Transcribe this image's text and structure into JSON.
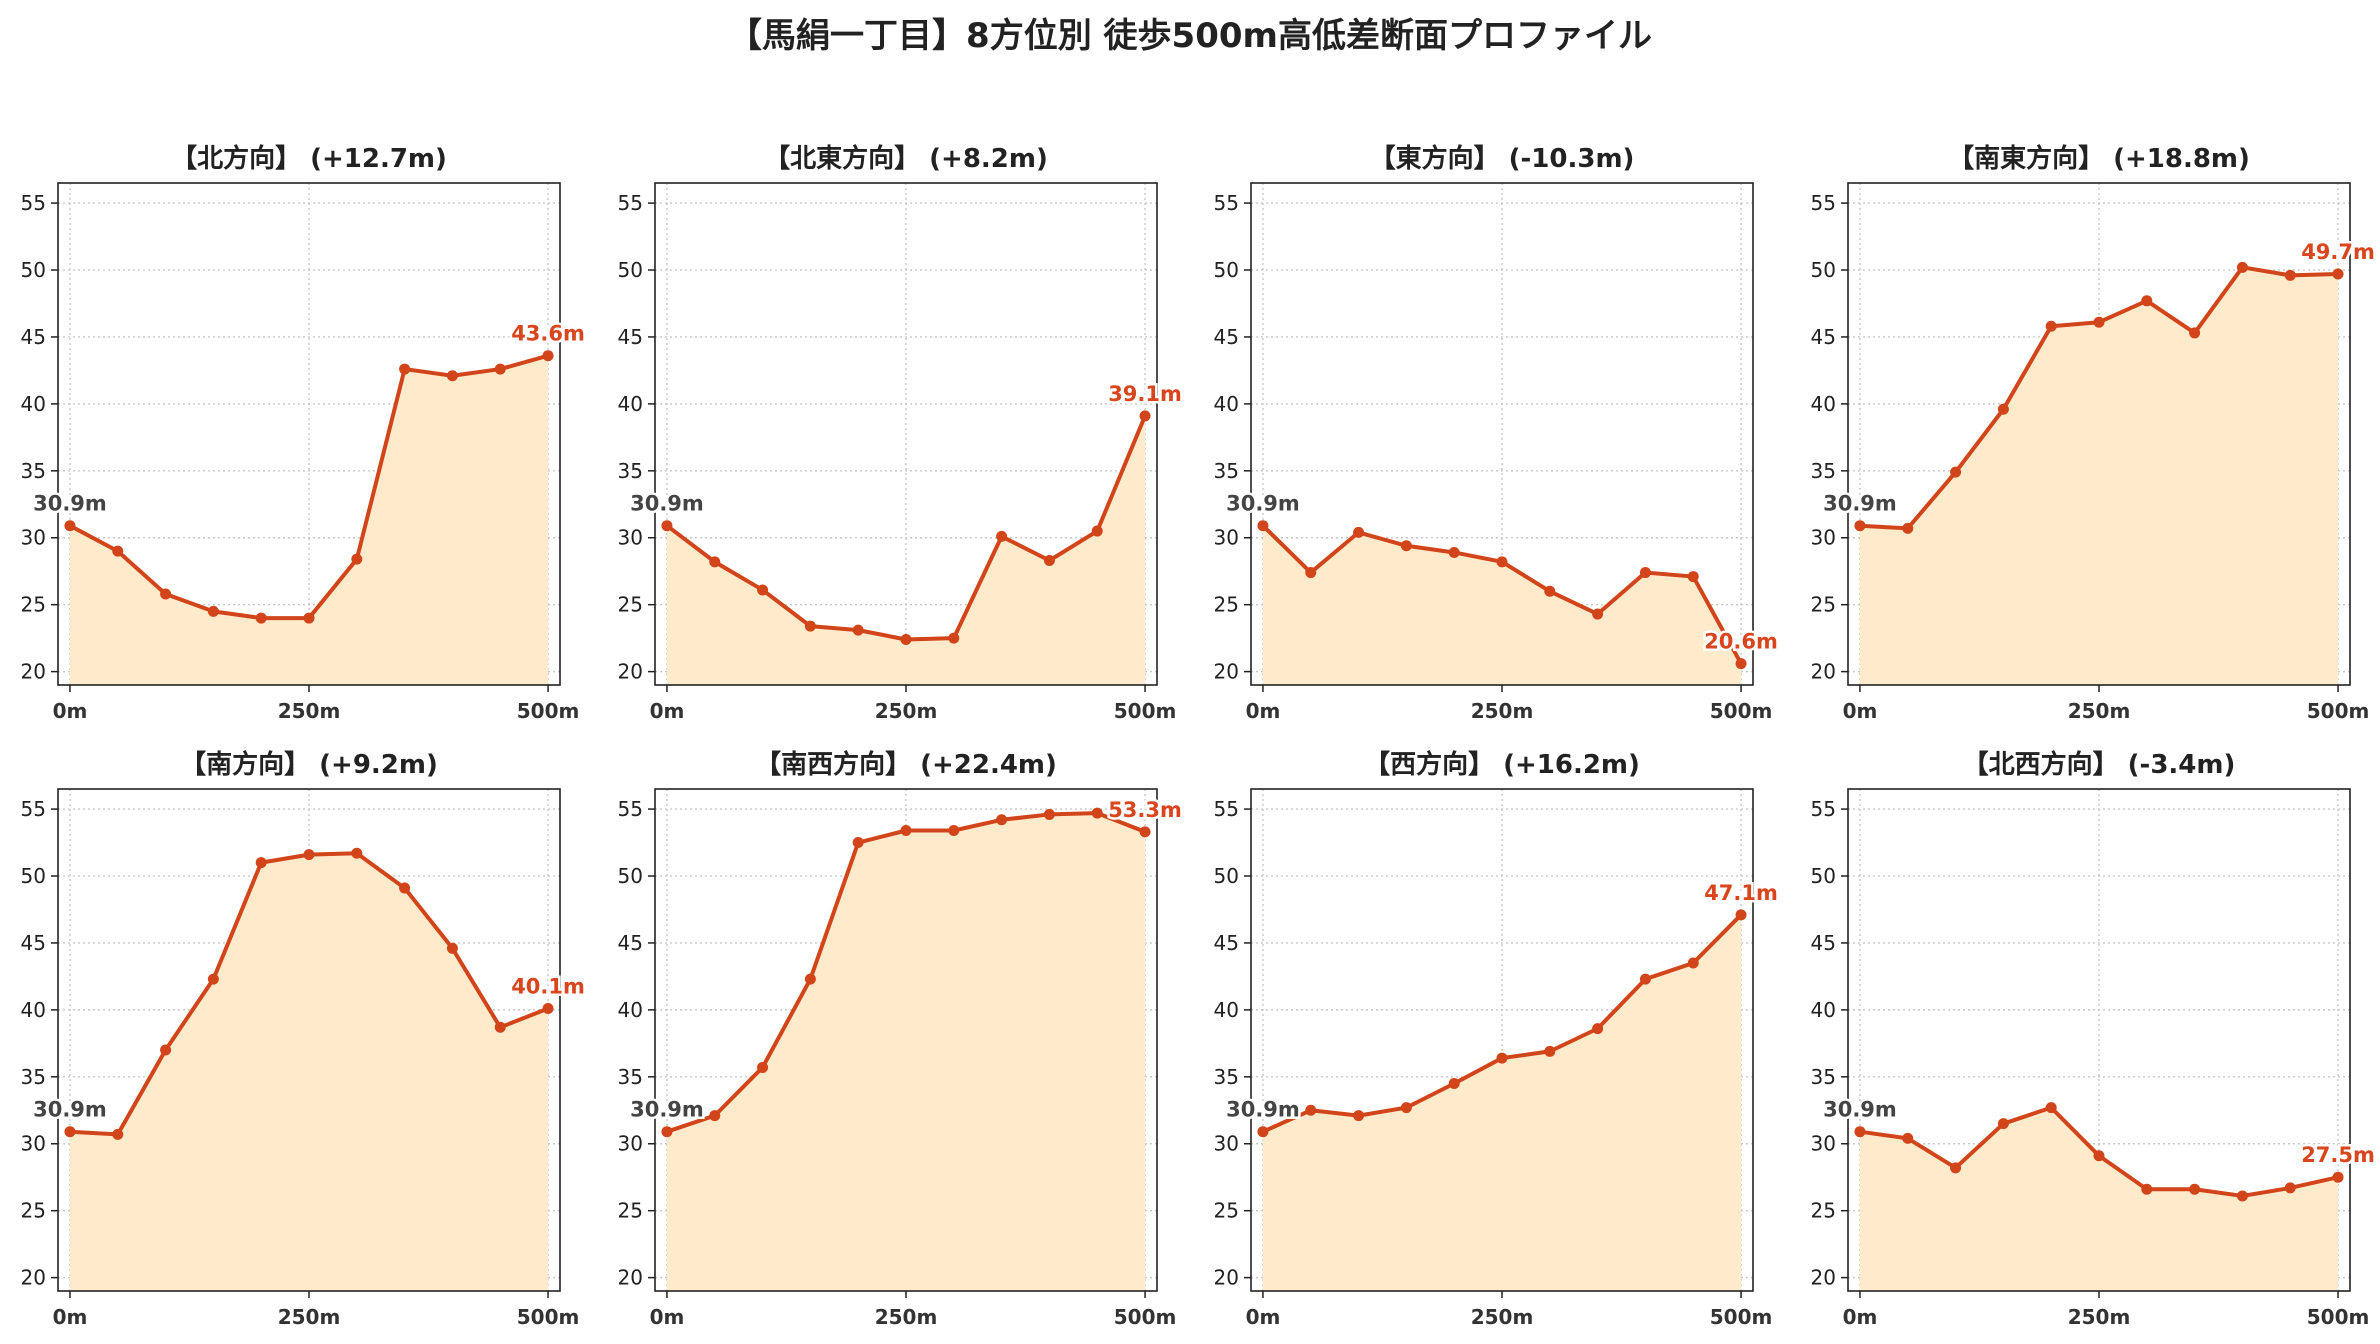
{
  "title": "【馬絹一丁目】8方位別 徒歩500m高低差断面プロファイル",
  "colors": {
    "line": "#d24419",
    "fill": "#ffebcc",
    "end_label": "#d9451c",
    "start_label": "#444444",
    "grid": "#c8c8c8"
  },
  "chart_data": [
    {
      "type": "area",
      "title": "【北方向】 (+12.7m)",
      "x": [
        0,
        50,
        100,
        150,
        200,
        250,
        300,
        350,
        400,
        450,
        500
      ],
      "y": [
        30.9,
        29.0,
        25.8,
        24.5,
        24.0,
        24.0,
        28.4,
        42.6,
        42.1,
        42.6,
        43.6
      ],
      "start_label": "30.9m",
      "end_label": "43.6m",
      "xlim": [
        0,
        500
      ],
      "ylim": [
        19,
        56.5
      ],
      "yticks": [
        20,
        25,
        30,
        35,
        40,
        45,
        50,
        55
      ],
      "xticks": [
        0,
        250,
        500
      ],
      "xtick_labels": [
        "0m",
        "250m",
        "500m"
      ],
      "grid": true
    },
    {
      "type": "area",
      "title": "【北東方向】 (+8.2m)",
      "x": [
        0,
        50,
        100,
        150,
        200,
        250,
        300,
        350,
        400,
        450,
        500
      ],
      "y": [
        30.9,
        28.2,
        26.1,
        23.4,
        23.1,
        22.4,
        22.5,
        30.1,
        28.3,
        30.5,
        39.1
      ],
      "start_label": "30.9m",
      "end_label": "39.1m",
      "xlim": [
        0,
        500
      ],
      "ylim": [
        19,
        56.5
      ],
      "yticks": [
        20,
        25,
        30,
        35,
        40,
        45,
        50,
        55
      ],
      "xticks": [
        0,
        250,
        500
      ],
      "xtick_labels": [
        "0m",
        "250m",
        "500m"
      ],
      "grid": true
    },
    {
      "type": "area",
      "title": "【東方向】 (-10.3m)",
      "x": [
        0,
        50,
        100,
        150,
        200,
        250,
        300,
        350,
        400,
        450,
        500
      ],
      "y": [
        30.9,
        27.4,
        30.4,
        29.4,
        28.9,
        28.2,
        26.0,
        24.3,
        27.4,
        27.1,
        20.6
      ],
      "start_label": "30.9m",
      "end_label": "20.6m",
      "xlim": [
        0,
        500
      ],
      "ylim": [
        19,
        56.5
      ],
      "yticks": [
        20,
        25,
        30,
        35,
        40,
        45,
        50,
        55
      ],
      "xticks": [
        0,
        250,
        500
      ],
      "xtick_labels": [
        "0m",
        "250m",
        "500m"
      ],
      "grid": true
    },
    {
      "type": "area",
      "title": "【南東方向】 (+18.8m)",
      "x": [
        0,
        50,
        100,
        150,
        200,
        250,
        300,
        350,
        400,
        450,
        500
      ],
      "y": [
        30.9,
        30.7,
        34.9,
        39.6,
        45.8,
        46.1,
        47.7,
        45.3,
        50.2,
        49.6,
        49.7
      ],
      "start_label": "30.9m",
      "end_label": "49.7m",
      "xlim": [
        0,
        500
      ],
      "ylim": [
        19,
        56.5
      ],
      "yticks": [
        20,
        25,
        30,
        35,
        40,
        45,
        50,
        55
      ],
      "xticks": [
        0,
        250,
        500
      ],
      "xtick_labels": [
        "0m",
        "250m",
        "500m"
      ],
      "grid": true
    },
    {
      "type": "area",
      "title": "【南方向】 (+9.2m)",
      "x": [
        0,
        50,
        100,
        150,
        200,
        250,
        300,
        350,
        400,
        450,
        500
      ],
      "y": [
        30.9,
        30.7,
        37.0,
        42.3,
        51.0,
        51.6,
        51.7,
        49.1,
        44.6,
        38.7,
        40.1
      ],
      "start_label": "30.9m",
      "end_label": "40.1m",
      "xlim": [
        0,
        500
      ],
      "ylim": [
        19,
        56.5
      ],
      "yticks": [
        20,
        25,
        30,
        35,
        40,
        45,
        50,
        55
      ],
      "xticks": [
        0,
        250,
        500
      ],
      "xtick_labels": [
        "0m",
        "250m",
        "500m"
      ],
      "grid": true
    },
    {
      "type": "area",
      "title": "【南西方向】 (+22.4m)",
      "x": [
        0,
        50,
        100,
        150,
        200,
        250,
        300,
        350,
        400,
        450,
        500
      ],
      "y": [
        30.9,
        32.1,
        35.7,
        42.3,
        52.5,
        53.4,
        53.4,
        54.2,
        54.6,
        54.7,
        53.3
      ],
      "start_label": "30.9m",
      "end_label": "53.3m",
      "xlim": [
        0,
        500
      ],
      "ylim": [
        19,
        56.5
      ],
      "yticks": [
        20,
        25,
        30,
        35,
        40,
        45,
        50,
        55
      ],
      "xticks": [
        0,
        250,
        500
      ],
      "xtick_labels": [
        "0m",
        "250m",
        "500m"
      ],
      "grid": true
    },
    {
      "type": "area",
      "title": "【西方向】 (+16.2m)",
      "x": [
        0,
        50,
        100,
        150,
        200,
        250,
        300,
        350,
        400,
        450,
        500
      ],
      "y": [
        30.9,
        32.5,
        32.1,
        32.7,
        34.5,
        36.4,
        36.9,
        38.6,
        42.3,
        43.5,
        47.1
      ],
      "start_label": "30.9m",
      "end_label": "47.1m",
      "xlim": [
        0,
        500
      ],
      "ylim": [
        19,
        56.5
      ],
      "yticks": [
        20,
        25,
        30,
        35,
        40,
        45,
        50,
        55
      ],
      "xticks": [
        0,
        250,
        500
      ],
      "xtick_labels": [
        "0m",
        "250m",
        "500m"
      ],
      "grid": true
    },
    {
      "type": "area",
      "title": "【北西方向】 (-3.4m)",
      "x": [
        0,
        50,
        100,
        150,
        200,
        250,
        300,
        350,
        400,
        450,
        500
      ],
      "y": [
        30.9,
        30.4,
        28.2,
        31.5,
        32.7,
        29.1,
        26.6,
        26.6,
        26.1,
        26.7,
        27.5
      ],
      "start_label": "30.9m",
      "end_label": "27.5m",
      "xlim": [
        0,
        500
      ],
      "ylim": [
        19,
        56.5
      ],
      "yticks": [
        20,
        25,
        30,
        35,
        40,
        45,
        50,
        55
      ],
      "xticks": [
        0,
        250,
        500
      ],
      "xtick_labels": [
        "0m",
        "250m",
        "500m"
      ],
      "grid": true
    }
  ]
}
